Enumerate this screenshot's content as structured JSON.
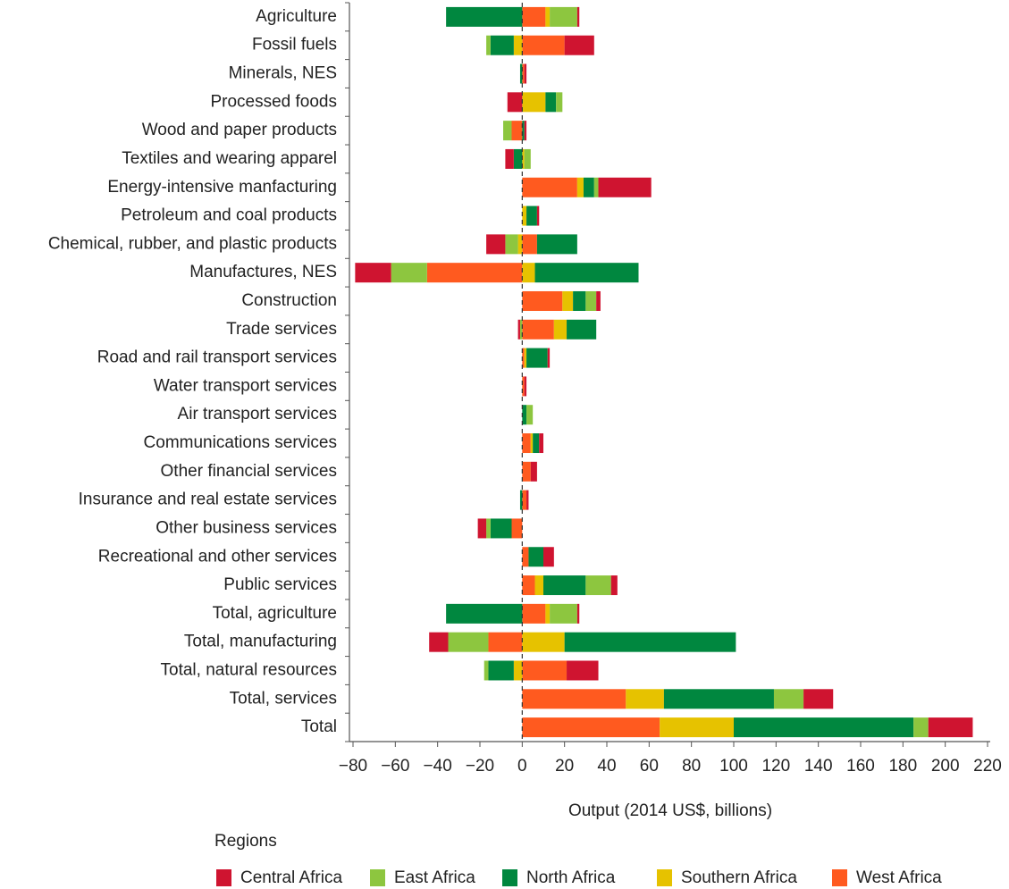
{
  "chart_data": {
    "type": "stacked_barh",
    "x_label": "Output (2014 US$, billions)",
    "legend_title": "Regions",
    "legend_position": "bottom",
    "categories": [
      "Agriculture",
      "Fossil fuels",
      "Minerals, NES",
      "Processed foods",
      "Wood and paper products",
      "Textiles and wearing apparel",
      "Energy-intensive manfacturing",
      "Petroleum and coal products",
      "Chemical, rubber, and plastic products",
      "Manufactures, NES",
      "Construction",
      "Trade services",
      "Road and rail transport services",
      "Water transport services",
      "Air transport services",
      "Communications services",
      "Other financial services",
      "Insurance and real estate services",
      "Other business services",
      "Recreational and other services",
      "Public services",
      "Total, agriculture",
      "Total, manufacturing",
      "Total, natural resources",
      "Total, services",
      "Total"
    ],
    "series": [
      {
        "name": "Central Africa",
        "color": "#cf1430",
        "values": [
          1,
          14,
          1,
          -7,
          1,
          -4,
          25,
          1,
          -9,
          -17,
          2,
          -1,
          1,
          1,
          0,
          2,
          3,
          1,
          -4,
          5,
          3,
          1,
          -9,
          15,
          14,
          21
        ]
      },
      {
        "name": "East Africa",
        "color": "#8dc63f",
        "values": [
          13,
          -2,
          0,
          3,
          -4,
          3,
          2,
          0,
          -6,
          -17,
          5,
          -1,
          0,
          0,
          3,
          0,
          0,
          0,
          -2,
          0,
          12,
          13,
          -19,
          -2,
          14,
          7
        ]
      },
      {
        "name": "North Africa",
        "color": "#00873f",
        "values": [
          -36,
          -11,
          -1,
          5,
          1,
          -4,
          5,
          5,
          19,
          49,
          6,
          14,
          10,
          0,
          2,
          3,
          0,
          -1,
          -10,
          7,
          20,
          -36,
          81,
          -12,
          52,
          85
        ]
      },
      {
        "name": "Southern Africa",
        "color": "#e6c200",
        "values": [
          2,
          -4,
          0,
          11,
          0,
          1,
          3,
          2,
          -2,
          6,
          5,
          6,
          1,
          0,
          0,
          1,
          0,
          0,
          0,
          0,
          4,
          2,
          20,
          -4,
          18,
          35
        ]
      },
      {
        "name": "West Africa",
        "color": "#ff5a1f",
        "values": [
          11,
          20,
          1,
          0,
          -5,
          0,
          26,
          0,
          7,
          -45,
          19,
          15,
          1,
          1,
          0,
          4,
          4,
          2,
          -5,
          3,
          6,
          11,
          -16,
          21,
          49,
          65
        ]
      }
    ],
    "xlim": [
      -80,
      220
    ],
    "xticks": [
      {
        "value": -80,
        "label": "−80"
      },
      {
        "value": -60,
        "label": "−60"
      },
      {
        "value": -40,
        "label": "−40"
      },
      {
        "value": -20,
        "label": "−20"
      },
      0,
      20,
      40,
      60,
      80,
      100,
      120,
      140,
      160,
      180,
      200,
      220
    ]
  }
}
